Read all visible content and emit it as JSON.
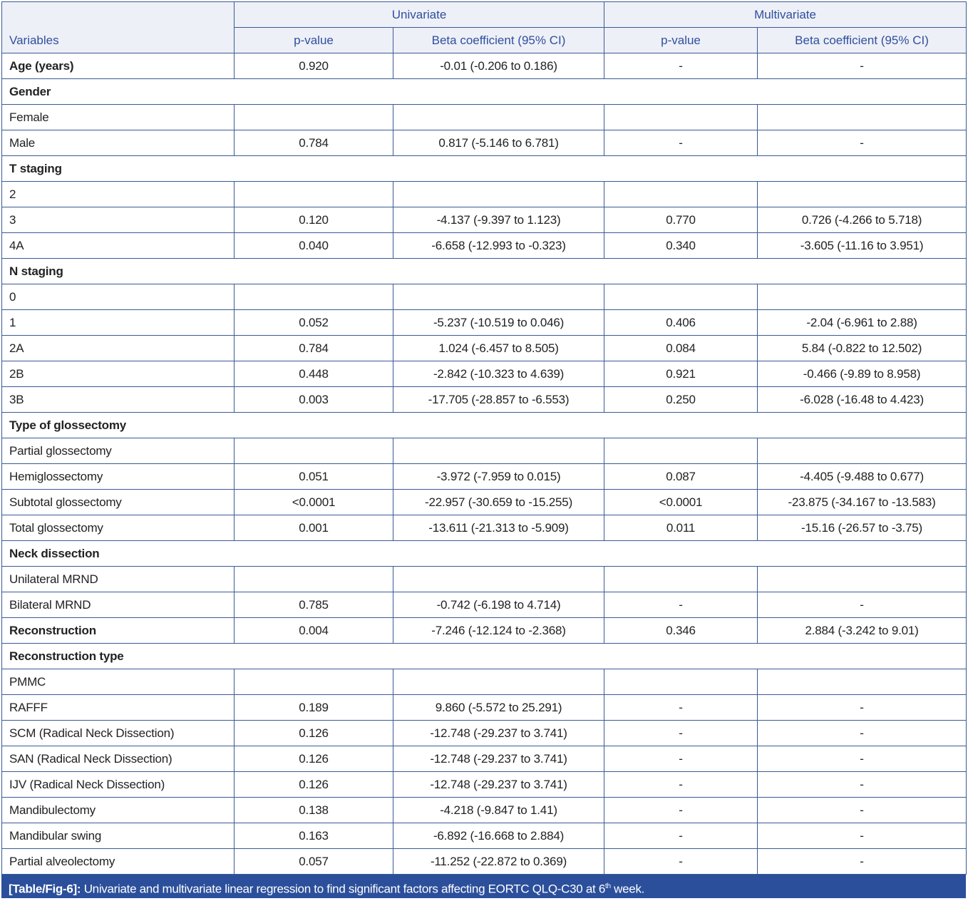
{
  "header": {
    "variables": "Variables",
    "univariate": "Univariate",
    "multivariate": "Multivariate",
    "pvalue": "p-value",
    "beta": "Beta coefficient (95% CI)"
  },
  "rows": [
    {
      "type": "bold",
      "cells": [
        "Age (years)",
        "0.920",
        "-0.01 (-0.206 to 0.186)",
        "-",
        "-"
      ]
    },
    {
      "type": "section",
      "cells": [
        "Gender"
      ]
    },
    {
      "type": "normal",
      "cells": [
        "Female",
        "",
        "",
        "",
        ""
      ]
    },
    {
      "type": "normal",
      "cells": [
        "Male",
        "0.784",
        "0.817 (-5.146 to 6.781)",
        "-",
        "-"
      ]
    },
    {
      "type": "section",
      "cells": [
        "T staging"
      ]
    },
    {
      "type": "normal",
      "cells": [
        "2",
        "",
        "",
        "",
        ""
      ]
    },
    {
      "type": "normal",
      "cells": [
        "3",
        "0.120",
        "-4.137 (-9.397 to 1.123)",
        "0.770",
        "0.726 (-4.266 to 5.718)"
      ]
    },
    {
      "type": "normal",
      "cells": [
        "4A",
        "0.040",
        "-6.658 (-12.993 to -0.323)",
        "0.340",
        "-3.605 (-11.16 to 3.951)"
      ]
    },
    {
      "type": "section",
      "cells": [
        "N staging"
      ]
    },
    {
      "type": "normal",
      "cells": [
        "0",
        "",
        "",
        "",
        ""
      ]
    },
    {
      "type": "normal",
      "cells": [
        "1",
        "0.052",
        "-5.237 (-10.519 to 0.046)",
        "0.406",
        "-2.04 (-6.961 to 2.88)"
      ]
    },
    {
      "type": "normal",
      "cells": [
        "2A",
        "0.784",
        "1.024 (-6.457 to 8.505)",
        "0.084",
        "5.84 (-0.822 to 12.502)"
      ]
    },
    {
      "type": "normal",
      "cells": [
        "2B",
        "0.448",
        "-2.842 (-10.323 to 4.639)",
        "0.921",
        "-0.466 (-9.89 to 8.958)"
      ]
    },
    {
      "type": "normal",
      "cells": [
        "3B",
        "0.003",
        "-17.705 (-28.857 to -6.553)",
        "0.250",
        "-6.028 (-16.48 to 4.423)"
      ]
    },
    {
      "type": "section",
      "cells": [
        "Type of glossectomy"
      ]
    },
    {
      "type": "normal",
      "cells": [
        "Partial glossectomy",
        "",
        "",
        "",
        ""
      ]
    },
    {
      "type": "normal",
      "cells": [
        "Hemiglossectomy",
        "0.051",
        "-3.972 (-7.959 to 0.015)",
        "0.087",
        "-4.405 (-9.488 to 0.677)"
      ]
    },
    {
      "type": "normal",
      "cells": [
        "Subtotal glossectomy",
        "<0.0001",
        "-22.957 (-30.659 to -15.255)",
        "<0.0001",
        "-23.875 (-34.167 to -13.583)"
      ]
    },
    {
      "type": "normal",
      "cells": [
        "Total glossectomy",
        "0.001",
        "-13.611 (-21.313 to -5.909)",
        "0.011",
        "-15.16 (-26.57 to -3.75)"
      ]
    },
    {
      "type": "section",
      "cells": [
        "Neck dissection"
      ]
    },
    {
      "type": "normal",
      "cells": [
        "Unilateral MRND",
        "",
        "",
        "",
        ""
      ]
    },
    {
      "type": "normal",
      "cells": [
        "Bilateral MRND",
        "0.785",
        "-0.742 (-6.198 to 4.714)",
        "-",
        "-"
      ]
    },
    {
      "type": "bold",
      "cells": [
        "Reconstruction",
        "0.004",
        "-7.246 (-12.124 to -2.368)",
        "0.346",
        "2.884 (-3.242 to 9.01)"
      ]
    },
    {
      "type": "section",
      "cells": [
        "Reconstruction type"
      ]
    },
    {
      "type": "normal",
      "cells": [
        "PMMC",
        "",
        "",
        "",
        ""
      ]
    },
    {
      "type": "normal",
      "cells": [
        "RAFFF",
        "0.189",
        "9.860 (-5.572 to 25.291)",
        "-",
        "-"
      ]
    },
    {
      "type": "normal",
      "cells": [
        "SCM (Radical Neck Dissection)",
        "0.126",
        "-12.748 (-29.237 to 3.741)",
        "-",
        "-"
      ]
    },
    {
      "type": "normal",
      "cells": [
        "SAN (Radical Neck Dissection)",
        "0.126",
        "-12.748 (-29.237 to 3.741)",
        "-",
        "-"
      ]
    },
    {
      "type": "normal",
      "cells": [
        "IJV (Radical Neck Dissection)",
        "0.126",
        "-12.748 (-29.237 to 3.741)",
        "-",
        "-"
      ]
    },
    {
      "type": "normal",
      "cells": [
        "Mandibulectomy",
        "0.138",
        "-4.218 (-9.847 to 1.41)",
        "-",
        "-"
      ]
    },
    {
      "type": "normal",
      "cells": [
        "Mandibular swing",
        "0.163",
        "-6.892 (-16.668 to 2.884)",
        "-",
        "-"
      ]
    },
    {
      "type": "normal",
      "cells": [
        "Partial alveolectomy",
        "0.057",
        "-11.252 (-22.872 to 0.369)",
        "-",
        "-"
      ]
    }
  ],
  "caption": {
    "label": "[Table/Fig-6]:",
    "text": " Univariate and multivariate linear regression to find significant factors affecting EORTC QLQ-C30 at 6",
    "sup": "th",
    "end": " week."
  },
  "colors": {
    "header_text": "#2f4f9e",
    "header_bg": "#eef0f7",
    "border": "#3a5a96",
    "caption_bg": "#2b4f9b"
  }
}
